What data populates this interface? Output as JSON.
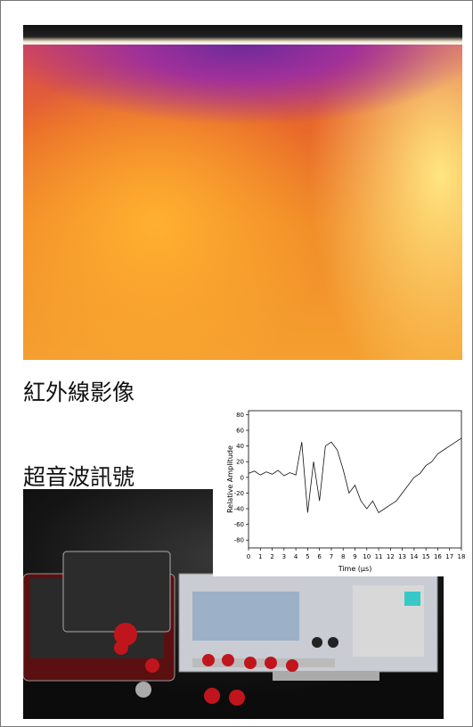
{
  "infrared_label": "紅外線影像",
  "ultrasonic_label": "超音波訊號",
  "signal_chart": {
    "type": "line",
    "x_label": "Time (µs)",
    "y_label": "Relative Amplitude",
    "x": [
      0,
      0.5,
      1,
      1.5,
      2,
      2.5,
      3,
      3.5,
      4,
      4.5,
      5,
      5.5,
      6,
      6.5,
      7,
      7.5,
      8,
      8.5,
      9,
      9.5,
      10,
      10.5,
      11,
      11.5,
      12,
      12.5,
      13,
      13.5,
      14,
      14.5,
      15,
      15.5,
      16,
      16.5,
      17,
      17.5,
      18
    ],
    "values": [
      5,
      8,
      3,
      7,
      4,
      9,
      2,
      6,
      3,
      45,
      -45,
      20,
      -30,
      40,
      45,
      35,
      10,
      -20,
      -10,
      -30,
      -40,
      -30,
      -45,
      -40,
      -35,
      -30,
      -20,
      -10,
      0,
      5,
      15,
      20,
      30,
      35,
      40,
      45,
      50
    ],
    "color": "#111111",
    "xlim": [
      0,
      18
    ],
    "xticks": [
      0,
      1,
      2,
      3,
      4,
      5,
      6,
      7,
      8,
      9,
      10,
      11,
      12,
      13,
      14,
      15,
      16,
      17,
      18
    ],
    "ylim": [
      -90,
      85
    ],
    "yticks": [
      -80,
      -60,
      -40,
      -20,
      0,
      20,
      40,
      60,
      80
    ]
  }
}
